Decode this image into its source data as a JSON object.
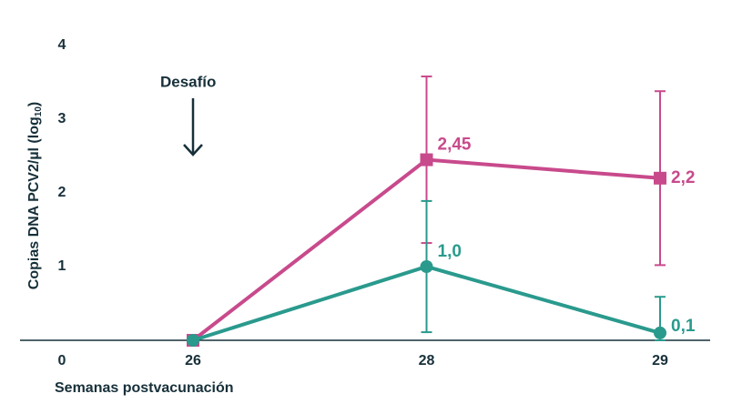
{
  "chart_data": {
    "type": "line",
    "ylabel": "Copias DNA PCV2/µl (log",
    "ylabel_sub": "10",
    "ylabel_end": ")",
    "xlabel": "Semanas postvacunación",
    "annotation": "Desafío",
    "categories": [
      "26",
      "28",
      "29"
    ],
    "ylim": [
      0,
      4
    ],
    "yticks": [
      0,
      1,
      2,
      3,
      4
    ],
    "series": [
      {
        "color": "#c84a8c",
        "marker": "square",
        "values": [
          0,
          2.45,
          2.2
        ],
        "value_labels": [
          null,
          "2,45",
          "2,2"
        ],
        "errors": [
          null,
          1.13,
          1.18
        ]
      },
      {
        "color": "#2a9a8d",
        "marker": "circle",
        "values": [
          0,
          1.0,
          0.1
        ],
        "value_labels": [
          null,
          "1,0",
          "0,1"
        ],
        "errors": [
          null,
          0.89,
          0.49
        ]
      }
    ]
  }
}
